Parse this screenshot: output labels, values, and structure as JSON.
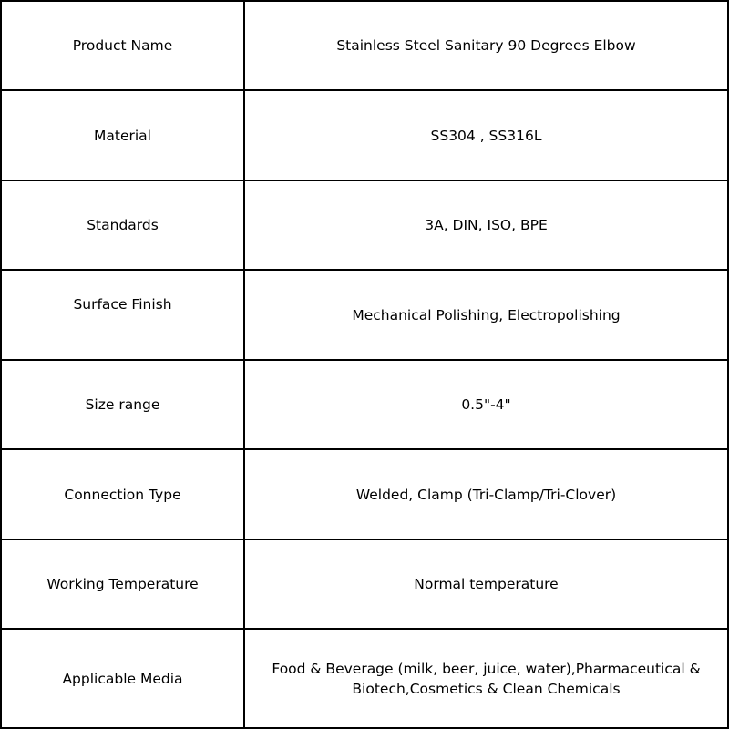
{
  "rows": [
    {
      "label": "Product Name",
      "value": "Stainless Steel Sanitary 90 Degrees Elbow"
    },
    {
      "label": "Material",
      "value": "SS304 , SS316L"
    },
    {
      "label": "Standards",
      "value": "3A, DIN, ISO, BPE"
    },
    {
      "label": "Surface Finish",
      "value": "Mechanical Polishing, Electropolishing"
    },
    {
      "label": "Size range",
      "value": "0.5\"-4\""
    },
    {
      "label": "Connection Type",
      "value": "Welded, Clamp (Tri-Clamp/Tri-Clover)"
    },
    {
      "label": "Working Temperature",
      "value": "Normal temperature"
    },
    {
      "label": "Applicable Media",
      "value": "Food & Beverage (milk, beer, juice, water),Pharmaceutical & Biotech,Cosmetics & Clean Chemicals"
    }
  ]
}
